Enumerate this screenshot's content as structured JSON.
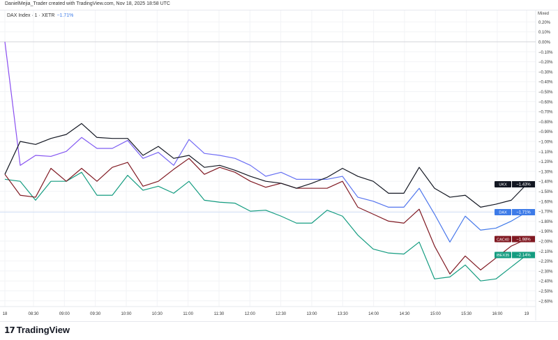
{
  "header": {
    "credit": "DanielMejia_Trader created with TradingView.com, Nov 18, 2025 18:58 UTC",
    "symbol": "DAX Index · 1 · XETR",
    "change": "−1.71%",
    "scale_mode": "Mixed"
  },
  "footer": {
    "brand": "TradingView",
    "logo_icon": "tradingview-logo-icon"
  },
  "chart_data": {
    "type": "line",
    "ylabel": "",
    "xlabel": "",
    "y_unit": "%",
    "ylim": [
      -2.65,
      0.24
    ],
    "grid": true,
    "x_tick_labels": [
      "18",
      "08:30",
      "09:00",
      "09:30",
      "10:00",
      "10:30",
      "11:00",
      "11:30",
      "12:00",
      "12:30",
      "13:00",
      "13:30",
      "14:00",
      "14:30",
      "15:00",
      "15:30",
      "16:00",
      "19"
    ],
    "y_tick_labels": [
      "0.20%",
      "0.10%",
      "0.00%",
      "−0.10%",
      "−0.20%",
      "−0.30%",
      "−0.40%",
      "−0.50%",
      "−0.60%",
      "−0.70%",
      "−0.80%",
      "−0.90%",
      "−1.00%",
      "−1.10%",
      "−1.20%",
      "−1.30%",
      "−1.40%",
      "−1.50%",
      "−1.60%",
      "−1.70%",
      "−1.80%",
      "−1.90%",
      "−2.00%",
      "−2.10%",
      "−2.20%",
      "−2.30%",
      "−2.40%",
      "−2.50%",
      "−2.60%"
    ],
    "y_ticks": [
      0.2,
      0.1,
      0,
      -0.1,
      -0.2,
      -0.3,
      -0.4,
      -0.5,
      -0.6,
      -0.7,
      -0.8,
      -0.9,
      -1.0,
      -1.1,
      -1.2,
      -1.3,
      -1.4,
      -1.5,
      -1.6,
      -1.7,
      -1.8,
      -1.9,
      -2.0,
      -2.1,
      -2.2,
      -2.3,
      -2.4,
      -2.5,
      -2.6
    ],
    "x": [
      "08:00",
      "08:15",
      "08:30",
      "08:45",
      "09:00",
      "09:15",
      "09:30",
      "09:45",
      "10:00",
      "10:15",
      "10:30",
      "10:45",
      "11:00",
      "11:15",
      "11:30",
      "11:45",
      "12:00",
      "12:15",
      "12:30",
      "12:45",
      "13:00",
      "13:15",
      "13:30",
      "13:45",
      "14:00",
      "14:15",
      "14:30",
      "14:45",
      "15:00",
      "15:15",
      "15:30",
      "15:45",
      "16:00",
      "16:15",
      "16:30"
    ],
    "series": [
      {
        "name": "UKX",
        "last_label": "−1.43%",
        "color": "#131722",
        "values": [
          -1.33,
          -1.0,
          -1.03,
          -0.97,
          -0.93,
          -0.82,
          -0.96,
          -0.97,
          -0.97,
          -1.14,
          -1.05,
          -1.17,
          -1.14,
          -1.26,
          -1.24,
          -1.29,
          -1.35,
          -1.4,
          -1.42,
          -1.47,
          -1.42,
          -1.36,
          -1.27,
          -1.35,
          -1.4,
          -1.52,
          -1.52,
          -1.26,
          -1.47,
          -1.56,
          -1.54,
          -1.66,
          -1.63,
          -1.59,
          -1.43
        ]
      },
      {
        "name": "DAX",
        "last_label": "−1.71%",
        "color": "#3d7be8",
        "values": [
          0.0,
          -1.24,
          -1.14,
          -1.15,
          -1.1,
          -0.96,
          -1.07,
          -1.07,
          -0.99,
          -1.17,
          -1.11,
          -1.24,
          -0.98,
          -1.12,
          -1.14,
          -1.17,
          -1.24,
          -1.35,
          -1.31,
          -1.38,
          -1.38,
          -1.38,
          -1.35,
          -1.56,
          -1.6,
          -1.66,
          -1.66,
          -1.47,
          -1.73,
          -2.01,
          -1.75,
          -1.89,
          -1.87,
          -1.8,
          -1.71
        ]
      },
      {
        "name": "CAC40",
        "last_label": "−1.98%",
        "color": "#801922",
        "values": [
          -1.33,
          -1.54,
          -1.56,
          -1.27,
          -1.4,
          -1.27,
          -1.4,
          -1.26,
          -1.21,
          -1.45,
          -1.4,
          -1.28,
          -1.17,
          -1.33,
          -1.26,
          -1.31,
          -1.4,
          -1.46,
          -1.42,
          -1.47,
          -1.47,
          -1.47,
          -1.4,
          -1.66,
          -1.73,
          -1.8,
          -1.82,
          -1.68,
          -2.05,
          -2.33,
          -2.15,
          -2.29,
          -2.17,
          -2.05,
          -1.98
        ]
      },
      {
        "name": "IBEX35",
        "last_label": "−2.14%",
        "color": "#149c80",
        "values": [
          -1.38,
          -1.4,
          -1.59,
          -1.4,
          -1.4,
          -1.31,
          -1.54,
          -1.54,
          -1.34,
          -1.49,
          -1.45,
          -1.52,
          -1.4,
          -1.59,
          -1.61,
          -1.62,
          -1.7,
          -1.69,
          -1.75,
          -1.82,
          -1.82,
          -1.69,
          -1.75,
          -1.94,
          -2.08,
          -2.12,
          -2.13,
          -2.01,
          -2.38,
          -2.36,
          -2.24,
          -2.4,
          -2.38,
          -2.26,
          -2.14
        ]
      }
    ]
  }
}
